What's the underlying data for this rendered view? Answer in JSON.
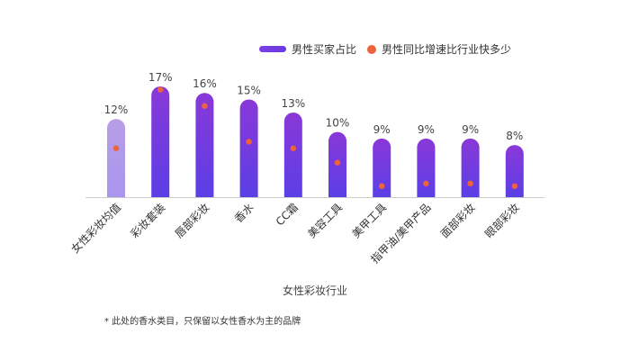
{
  "chart_data": {
    "type": "bar",
    "categories": [
      "女性彩妆均值",
      "彩妆套装",
      "唇部彩妆",
      "香水",
      "CC霜",
      "美容工具",
      "美甲工具",
      "指甲油/美甲产品",
      "面部彩妆",
      "眼部彩妆"
    ],
    "series": [
      {
        "name": "男性买家占比",
        "values": [
          12,
          17,
          16,
          15,
          13,
          10,
          9,
          9,
          9,
          8
        ],
        "value_labels": [
          "12%",
          "17%",
          "16%",
          "15%",
          "13%",
          "10%",
          "9%",
          "9%",
          "9%",
          "8%"
        ]
      },
      {
        "name": "男性同比增速比行业快多少",
        "values": [
          7.5,
          16.5,
          14.0,
          8.5,
          7.5,
          5.3,
          1.7,
          2.1,
          2.1,
          1.7
        ]
      }
    ],
    "xlabel": "女性彩妆行业",
    "ylim": [
      0,
      17
    ],
    "grid": false,
    "legend_position": "top-right"
  },
  "footnote": "* 此处的香水类目，只保留以女性香水为主的品牌",
  "colors": {
    "bar_top": "#8a38d8",
    "bar_bottom": "#5b3fe6",
    "baseline_bar_top": "#b79ee6",
    "baseline_bar_bottom": "#a995ee",
    "dot": "#f0633a",
    "axis": "#cccccc"
  }
}
